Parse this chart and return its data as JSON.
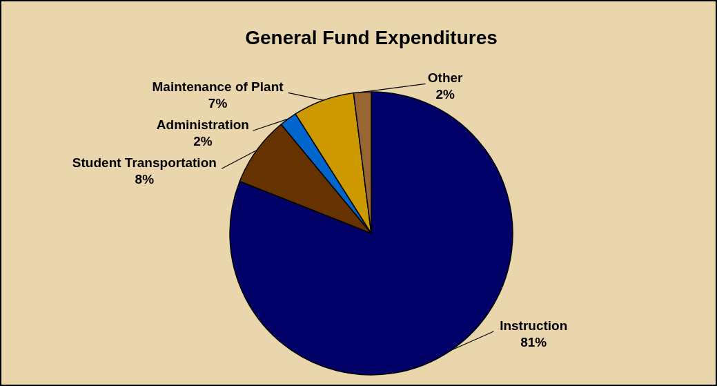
{
  "chart_data": {
    "type": "pie",
    "title": "General Fund Expenditures",
    "categories": [
      "Instruction",
      "Student Transportation",
      "Administration",
      "Maintenance of Plant",
      "Other"
    ],
    "values": [
      81,
      8,
      2,
      7,
      2
    ],
    "value_labels": [
      "81%",
      "8%",
      "2%",
      "7%",
      "2%"
    ],
    "colors": [
      "#000066",
      "#663300",
      "#0066cc",
      "#cc9900",
      "#996633"
    ]
  }
}
